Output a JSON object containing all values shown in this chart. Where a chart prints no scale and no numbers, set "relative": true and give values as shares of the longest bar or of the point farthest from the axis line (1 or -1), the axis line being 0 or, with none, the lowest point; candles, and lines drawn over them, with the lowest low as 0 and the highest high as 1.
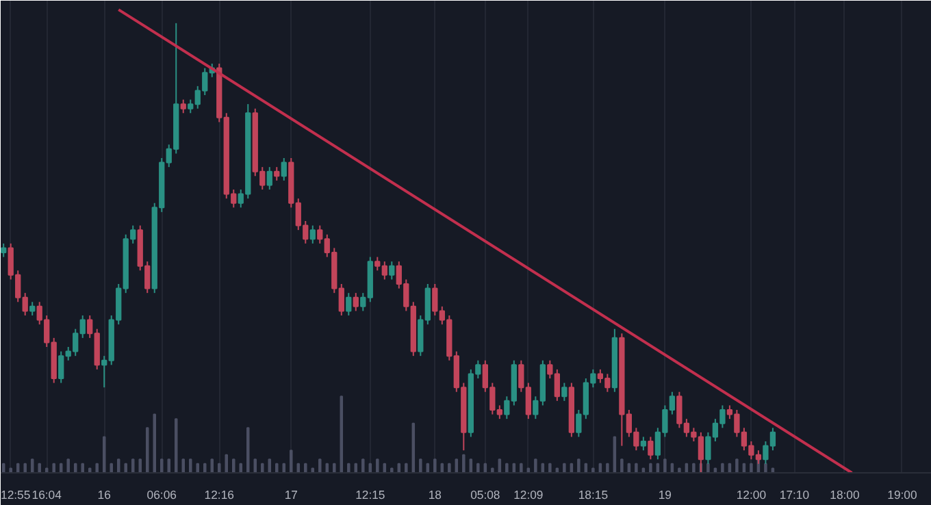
{
  "chart_data": {
    "type": "candlestick",
    "relative": true,
    "grid": "x",
    "categories": [
      null,
      "12:55",
      null,
      null,
      null,
      null,
      "16:04",
      null,
      null,
      null,
      null,
      null,
      null,
      null,
      "16",
      null,
      null,
      null,
      null,
      null,
      null,
      null,
      "06:06",
      null,
      null,
      null,
      null,
      null,
      null,
      null,
      "12:16",
      null,
      null,
      null,
      null,
      null,
      null,
      null,
      null,
      null,
      "17",
      null,
      null,
      null,
      null,
      null,
      null,
      null,
      null,
      null,
      null,
      "12:15",
      null,
      null,
      null,
      null,
      null,
      null,
      null,
      null,
      "18",
      null,
      null,
      null,
      null,
      null,
      null,
      "05:08",
      null,
      null,
      null,
      null,
      null,
      "12:09",
      null,
      null,
      null,
      null,
      null,
      null,
      null,
      null,
      "18:15",
      null,
      null,
      null,
      null,
      null,
      null,
      null,
      null,
      null,
      "19",
      null,
      null,
      null,
      null,
      null,
      null,
      null,
      null,
      null,
      null,
      null,
      "12:00",
      null,
      null,
      null,
      null,
      null,
      "17:10",
      null,
      null,
      null,
      null,
      null,
      null,
      "18:00",
      null,
      null,
      null,
      null,
      null,
      null,
      null,
      "19:00"
    ],
    "ohlc": [
      [
        0.49,
        0.51,
        0.48,
        0.5
      ],
      [
        0.5,
        0.51,
        0.43,
        0.44
      ],
      [
        0.44,
        0.45,
        0.38,
        0.39
      ],
      [
        0.39,
        0.4,
        0.35,
        0.36
      ],
      [
        0.36,
        0.38,
        0.35,
        0.37
      ],
      [
        0.37,
        0.38,
        0.33,
        0.34
      ],
      [
        0.34,
        0.35,
        0.28,
        0.29
      ],
      [
        0.29,
        0.3,
        0.2,
        0.21
      ],
      [
        0.21,
        0.27,
        0.2,
        0.26
      ],
      [
        0.26,
        0.28,
        0.25,
        0.27
      ],
      [
        0.27,
        0.32,
        0.26,
        0.31
      ],
      [
        0.31,
        0.35,
        0.3,
        0.34
      ],
      [
        0.34,
        0.35,
        0.3,
        0.31
      ],
      [
        0.31,
        0.32,
        0.23,
        0.24
      ],
      [
        0.24,
        0.26,
        0.19,
        0.25
      ],
      [
        0.25,
        0.35,
        0.24,
        0.34
      ],
      [
        0.34,
        0.42,
        0.33,
        0.41
      ],
      [
        0.41,
        0.53,
        0.4,
        0.52
      ],
      [
        0.52,
        0.55,
        0.51,
        0.54
      ],
      [
        0.54,
        0.55,
        0.45,
        0.46
      ],
      [
        0.46,
        0.47,
        0.4,
        0.41
      ],
      [
        0.41,
        0.6,
        0.4,
        0.59
      ],
      [
        0.59,
        0.7,
        0.58,
        0.69
      ],
      [
        0.69,
        0.73,
        0.68,
        0.72
      ],
      [
        0.72,
        1.0,
        0.71,
        0.82
      ],
      [
        0.82,
        0.83,
        0.8,
        0.81
      ],
      [
        0.81,
        0.83,
        0.8,
        0.82
      ],
      [
        0.82,
        0.86,
        0.81,
        0.85
      ],
      [
        0.85,
        0.9,
        0.84,
        0.89
      ],
      [
        0.89,
        0.91,
        0.88,
        0.9
      ],
      [
        0.9,
        0.91,
        0.78,
        0.79
      ],
      [
        0.79,
        0.8,
        0.61,
        0.62
      ],
      [
        0.62,
        0.63,
        0.59,
        0.6
      ],
      [
        0.6,
        0.63,
        0.59,
        0.62
      ],
      [
        0.62,
        0.82,
        0.61,
        0.8
      ],
      [
        0.8,
        0.81,
        0.66,
        0.67
      ],
      [
        0.67,
        0.68,
        0.63,
        0.64
      ],
      [
        0.64,
        0.68,
        0.63,
        0.67
      ],
      [
        0.67,
        0.68,
        0.65,
        0.66
      ],
      [
        0.66,
        0.7,
        0.65,
        0.69
      ],
      [
        0.69,
        0.7,
        0.59,
        0.6
      ],
      [
        0.6,
        0.61,
        0.54,
        0.55
      ],
      [
        0.55,
        0.56,
        0.51,
        0.52
      ],
      [
        0.52,
        0.55,
        0.51,
        0.54
      ],
      [
        0.54,
        0.55,
        0.51,
        0.52
      ],
      [
        0.52,
        0.53,
        0.48,
        0.49
      ],
      [
        0.49,
        0.5,
        0.4,
        0.41
      ],
      [
        0.41,
        0.42,
        0.35,
        0.36
      ],
      [
        0.36,
        0.4,
        0.35,
        0.39
      ],
      [
        0.39,
        0.4,
        0.36,
        0.37
      ],
      [
        0.37,
        0.4,
        0.36,
        0.39
      ],
      [
        0.39,
        0.48,
        0.38,
        0.47
      ],
      [
        0.47,
        0.48,
        0.45,
        0.46
      ],
      [
        0.46,
        0.47,
        0.43,
        0.44
      ],
      [
        0.44,
        0.47,
        0.43,
        0.46
      ],
      [
        0.46,
        0.47,
        0.41,
        0.42
      ],
      [
        0.42,
        0.43,
        0.36,
        0.37
      ],
      [
        0.37,
        0.38,
        0.26,
        0.27
      ],
      [
        0.27,
        0.35,
        0.26,
        0.34
      ],
      [
        0.34,
        0.42,
        0.33,
        0.41
      ],
      [
        0.41,
        0.42,
        0.35,
        0.36
      ],
      [
        0.36,
        0.37,
        0.33,
        0.34
      ],
      [
        0.34,
        0.35,
        0.25,
        0.26
      ],
      [
        0.26,
        0.27,
        0.18,
        0.19
      ],
      [
        0.19,
        0.2,
        0.05,
        0.09
      ],
      [
        0.09,
        0.23,
        0.08,
        0.22
      ],
      [
        0.22,
        0.25,
        0.21,
        0.24
      ],
      [
        0.24,
        0.25,
        0.18,
        0.19
      ],
      [
        0.19,
        0.2,
        0.13,
        0.14
      ],
      [
        0.14,
        0.15,
        0.12,
        0.13
      ],
      [
        0.13,
        0.17,
        0.12,
        0.16
      ],
      [
        0.16,
        0.25,
        0.15,
        0.24
      ],
      [
        0.24,
        0.25,
        0.18,
        0.19
      ],
      [
        0.19,
        0.2,
        0.12,
        0.13
      ],
      [
        0.13,
        0.17,
        0.12,
        0.16
      ],
      [
        0.16,
        0.25,
        0.15,
        0.24
      ],
      [
        0.24,
        0.25,
        0.21,
        0.22
      ],
      [
        0.22,
        0.23,
        0.16,
        0.17
      ],
      [
        0.17,
        0.2,
        0.16,
        0.19
      ],
      [
        0.19,
        0.2,
        0.08,
        0.09
      ],
      [
        0.09,
        0.14,
        0.08,
        0.13
      ],
      [
        0.13,
        0.21,
        0.12,
        0.2
      ],
      [
        0.2,
        0.23,
        0.19,
        0.22
      ],
      [
        0.22,
        0.23,
        0.2,
        0.21
      ],
      [
        0.21,
        0.22,
        0.18,
        0.19
      ],
      [
        0.19,
        0.32,
        0.18,
        0.3
      ],
      [
        0.3,
        0.31,
        0.06,
        0.13
      ],
      [
        0.13,
        0.14,
        0.08,
        0.09
      ],
      [
        0.09,
        0.1,
        0.05,
        0.06
      ],
      [
        0.06,
        0.08,
        0.05,
        0.07
      ],
      [
        0.07,
        0.08,
        0.03,
        0.04
      ],
      [
        0.04,
        0.1,
        0.03,
        0.09
      ],
      [
        0.09,
        0.15,
        0.08,
        0.14
      ],
      [
        0.14,
        0.18,
        0.13,
        0.17
      ],
      [
        0.17,
        0.18,
        0.1,
        0.11
      ],
      [
        0.11,
        0.12,
        0.08,
        0.09
      ],
      [
        0.09,
        0.1,
        0.07,
        0.08
      ],
      [
        0.08,
        0.09,
        0.0,
        0.03
      ],
      [
        0.03,
        0.09,
        0.02,
        0.08
      ],
      [
        0.08,
        0.12,
        0.07,
        0.11
      ],
      [
        0.11,
        0.15,
        0.1,
        0.14
      ],
      [
        0.14,
        0.15,
        0.12,
        0.13
      ],
      [
        0.13,
        0.14,
        0.08,
        0.09
      ],
      [
        0.09,
        0.1,
        0.05,
        0.06
      ],
      [
        0.06,
        0.07,
        0.03,
        0.04
      ],
      [
        0.04,
        0.05,
        0.02,
        0.03
      ],
      [
        0.03,
        0.07,
        0.02,
        0.06
      ],
      [
        0.06,
        0.1,
        0.05,
        0.09
      ],
      null,
      null,
      null,
      null,
      null,
      null,
      null,
      null,
      null,
      null,
      null,
      null,
      null,
      null,
      null,
      null,
      null,
      null
    ],
    "colors": [
      "#2a9184",
      "#c2455b",
      "#c2455b",
      "#c2455b",
      "#2a9184",
      "#c2455b",
      "#c2455b",
      "#c2455b",
      "#2a9184",
      "#2a9184",
      "#2a9184",
      "#2a9184",
      "#c2455b",
      "#c2455b",
      "#2a9184",
      "#2a9184",
      "#2a9184",
      "#2a9184",
      "#2a9184",
      "#c2455b",
      "#c2455b",
      "#2a9184",
      "#2a9184",
      "#2a9184",
      "#2a9184",
      "#c2455b",
      "#2a9184",
      "#2a9184",
      "#2a9184",
      "#2a9184",
      "#c2455b",
      "#c2455b",
      "#c2455b",
      "#2a9184",
      "#2a9184",
      "#c2455b",
      "#c2455b",
      "#2a9184",
      "#c2455b",
      "#2a9184",
      "#c2455b",
      "#c2455b",
      "#c2455b",
      "#2a9184",
      "#c2455b",
      "#c2455b",
      "#c2455b",
      "#c2455b",
      "#2a9184",
      "#c2455b",
      "#2a9184",
      "#2a9184",
      "#c2455b",
      "#c2455b",
      "#2a9184",
      "#c2455b",
      "#c2455b",
      "#c2455b",
      "#2a9184",
      "#2a9184",
      "#c2455b",
      "#c2455b",
      "#c2455b",
      "#c2455b",
      "#c2455b",
      "#2a9184",
      "#2a9184",
      "#c2455b",
      "#c2455b",
      "#c2455b",
      "#2a9184",
      "#2a9184",
      "#c2455b",
      "#c2455b",
      "#2a9184",
      "#2a9184",
      "#c2455b",
      "#c2455b",
      "#2a9184",
      "#c2455b",
      "#2a9184",
      "#2a9184",
      "#2a9184",
      "#c2455b",
      "#c2455b",
      "#2a9184",
      "#c2455b",
      "#c2455b",
      "#c2455b",
      "#2a9184",
      "#c2455b",
      "#2a9184",
      "#2a9184",
      "#2a9184",
      "#c2455b",
      "#c2455b",
      "#c2455b",
      "#c2455b",
      "#2a9184",
      "#2a9184",
      "#2a9184",
      "#c2455b",
      "#c2455b",
      "#c2455b",
      "#c2455b",
      "#c2455b",
      "#2a9184",
      "#2a9184",
      null,
      null,
      null,
      null,
      null,
      null,
      null,
      null,
      null,
      null,
      null,
      null,
      null,
      null,
      null,
      null,
      null,
      null
    ],
    "series": [
      {
        "type": "line",
        "color": "#c22f4e",
        "values": [
          null,
          null,
          null,
          null,
          null,
          null,
          null,
          null,
          null,
          null,
          null,
          null,
          null,
          null,
          null,
          null,
          1.03,
          null,
          null,
          null,
          null,
          null,
          null,
          null,
          null,
          null,
          null,
          null,
          null,
          null,
          null,
          null,
          null,
          null,
          null,
          null,
          null,
          null,
          null,
          null,
          null,
          null,
          null,
          null,
          null,
          null,
          null,
          null,
          null,
          null,
          null,
          null,
          null,
          null,
          null,
          null,
          null,
          null,
          null,
          null,
          null,
          null,
          null,
          null,
          null,
          null,
          null,
          null,
          null,
          null,
          null,
          null,
          null,
          null,
          null,
          null,
          null,
          null,
          null,
          null,
          null,
          null,
          null,
          null,
          null,
          null,
          null,
          null,
          null,
          null,
          null,
          null,
          null,
          null,
          null,
          null,
          null,
          null,
          null,
          null,
          null,
          null,
          null,
          null,
          null,
          null,
          null,
          null,
          null,
          null,
          null,
          null,
          null,
          null,
          null,
          null,
          null,
          null,
          0.0,
          null,
          null,
          null,
          null,
          null,
          null,
          null
        ]
      },
      {
        "type": "bar",
        "color": "#4b4f63",
        "values": [
          0.02,
          0.01,
          0.02,
          0.02,
          0.03,
          0.02,
          0.01,
          0.02,
          0.02,
          0.03,
          0.02,
          0.02,
          0.01,
          0.02,
          0.08,
          0.02,
          0.03,
          0.02,
          0.03,
          0.03,
          0.1,
          0.13,
          0.03,
          0.03,
          0.12,
          0.03,
          0.03,
          0.02,
          0.02,
          0.03,
          0.02,
          0.04,
          0.03,
          0.02,
          0.1,
          0.03,
          0.02,
          0.03,
          0.02,
          0.02,
          0.05,
          0.02,
          0.02,
          0.01,
          0.03,
          0.02,
          0.02,
          0.17,
          0.02,
          0.02,
          0.03,
          0.02,
          0.03,
          0.02,
          0.01,
          0.02,
          0.02,
          0.11,
          0.03,
          0.02,
          0.03,
          0.02,
          0.02,
          0.03,
          0.04,
          0.03,
          0.02,
          0.02,
          0.01,
          0.03,
          0.02,
          0.02,
          0.02,
          0.01,
          0.03,
          0.02,
          0.02,
          0.01,
          0.02,
          0.02,
          0.03,
          0.02,
          0.01,
          0.02,
          0.02,
          0.08,
          0.03,
          0.02,
          0.02,
          0.01,
          0.02,
          0.02,
          0.03,
          0.02,
          0.01,
          0.02,
          0.02,
          0.02,
          0.02,
          0.01,
          0.02,
          0.02,
          0.03,
          0.02,
          0.02,
          0.03,
          0.02,
          0.01,
          null,
          null,
          null,
          null,
          null,
          null,
          null,
          null,
          null,
          null,
          null,
          null,
          null,
          null,
          null,
          null,
          null,
          null
        ]
      }
    ]
  }
}
